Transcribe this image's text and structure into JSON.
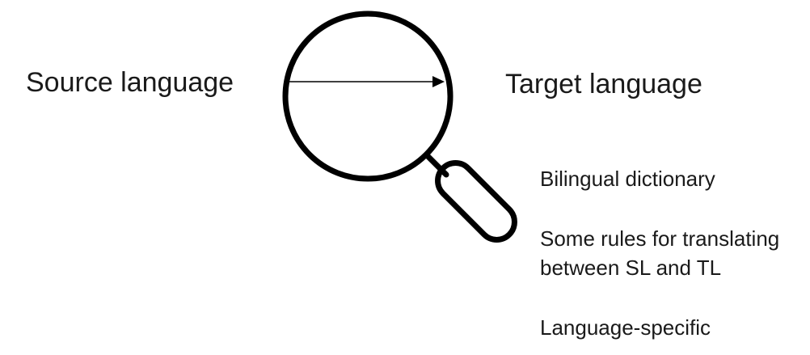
{
  "diagram": {
    "source_label": "Source language",
    "target_label": "Target language",
    "notes": [
      {
        "lines": [
          "Bilingual dictionary"
        ]
      },
      {
        "lines": [
          "Some rules for translating",
          "between SL and TL"
        ]
      },
      {
        "lines": [
          "Language-specific"
        ]
      }
    ],
    "icons": {
      "lens": "magnifying-glass-icon",
      "arrow": "right-arrow"
    },
    "colors": {
      "ink": "#000000",
      "text": "#1a1a1a",
      "background": "#ffffff"
    }
  }
}
